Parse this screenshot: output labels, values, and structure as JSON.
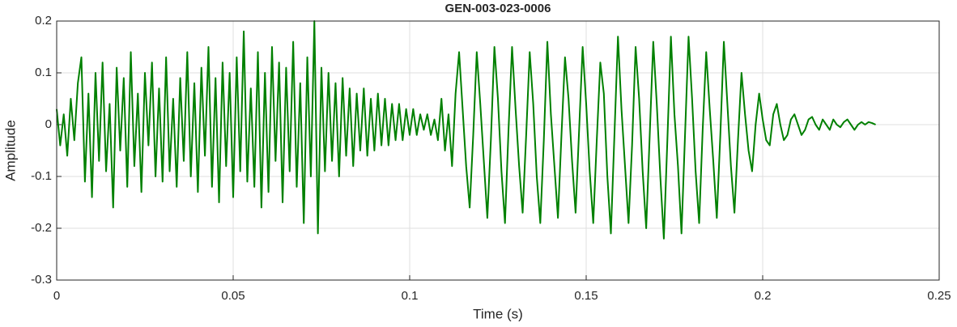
{
  "chart_data": {
    "type": "line",
    "title": "GEN-003-023-0006",
    "xlabel": "Time (s)",
    "ylabel": "Amplitude",
    "color": "#008000",
    "grid": true,
    "xlim": [
      0,
      0.25
    ],
    "ylim": [
      -0.3,
      0.2
    ],
    "xticks": [
      0,
      0.05,
      0.1,
      0.15,
      0.2,
      0.25
    ],
    "yticks": [
      -0.3,
      -0.2,
      -0.1,
      0,
      0.1,
      0.2
    ],
    "x": [
      0,
      0.001,
      0.002,
      0.003,
      0.004,
      0.005,
      0.006,
      0.007,
      0.008,
      0.009,
      0.01,
      0.011,
      0.012,
      0.013,
      0.014,
      0.015,
      0.016,
      0.017,
      0.018,
      0.019,
      0.02,
      0.021,
      0.022,
      0.023,
      0.024,
      0.025,
      0.026,
      0.027,
      0.028,
      0.029,
      0.03,
      0.031,
      0.032,
      0.033,
      0.034,
      0.035,
      0.036,
      0.037,
      0.038,
      0.039,
      0.04,
      0.041,
      0.042,
      0.043,
      0.044,
      0.045,
      0.046,
      0.047,
      0.048,
      0.049,
      0.05,
      0.051,
      0.052,
      0.053,
      0.054,
      0.055,
      0.056,
      0.057,
      0.058,
      0.059,
      0.06,
      0.061,
      0.062,
      0.063,
      0.064,
      0.065,
      0.066,
      0.067,
      0.068,
      0.069,
      0.07,
      0.071,
      0.072,
      0.073,
      0.074,
      0.075,
      0.076,
      0.077,
      0.078,
      0.079,
      0.08,
      0.081,
      0.082,
      0.083,
      0.084,
      0.085,
      0.086,
      0.087,
      0.088,
      0.089,
      0.09,
      0.091,
      0.092,
      0.093,
      0.094,
      0.095,
      0.096,
      0.097,
      0.098,
      0.099,
      0.1,
      0.101,
      0.102,
      0.103,
      0.104,
      0.105,
      0.106,
      0.107,
      0.108,
      0.109,
      0.11,
      0.111,
      0.112,
      0.113,
      0.114,
      0.115,
      0.116,
      0.117,
      0.118,
      0.119,
      0.12,
      0.121,
      0.122,
      0.123,
      0.124,
      0.125,
      0.126,
      0.127,
      0.128,
      0.129,
      0.13,
      0.131,
      0.132,
      0.133,
      0.134,
      0.135,
      0.136,
      0.137,
      0.138,
      0.139,
      0.14,
      0.141,
      0.142,
      0.143,
      0.144,
      0.145,
      0.146,
      0.147,
      0.148,
      0.149,
      0.15,
      0.151,
      0.152,
      0.153,
      0.154,
      0.155,
      0.156,
      0.157,
      0.158,
      0.159,
      0.16,
      0.161,
      0.162,
      0.163,
      0.164,
      0.165,
      0.166,
      0.167,
      0.168,
      0.169,
      0.17,
      0.171,
      0.172,
      0.173,
      0.174,
      0.175,
      0.176,
      0.177,
      0.178,
      0.179,
      0.18,
      0.181,
      0.182,
      0.183,
      0.184,
      0.185,
      0.186,
      0.187,
      0.188,
      0.189,
      0.19,
      0.191,
      0.192,
      0.193,
      0.194,
      0.195,
      0.196,
      0.197,
      0.198,
      0.199,
      0.2,
      0.201,
      0.202,
      0.203,
      0.204,
      0.205,
      0.206,
      0.207,
      0.208,
      0.209,
      0.21,
      0.211,
      0.212,
      0.213,
      0.214,
      0.215,
      0.216,
      0.217,
      0.218,
      0.219,
      0.22,
      0.221,
      0.222,
      0.223,
      0.224,
      0.225,
      0.226,
      0.227,
      0.228,
      0.229,
      0.23,
      0.231,
      0.232
    ],
    "values": [
      0.03,
      -0.04,
      0.02,
      -0.06,
      0.05,
      -0.03,
      0.08,
      0.13,
      -0.11,
      0.06,
      -0.14,
      0.1,
      -0.07,
      0.12,
      -0.09,
      0.04,
      -0.16,
      0.11,
      -0.05,
      0.09,
      -0.12,
      0.14,
      -0.08,
      0.06,
      -0.13,
      0.1,
      -0.04,
      0.12,
      -0.1,
      0.07,
      -0.11,
      0.13,
      -0.09,
      0.05,
      -0.12,
      0.09,
      -0.07,
      0.14,
      -0.1,
      0.08,
      -0.13,
      0.11,
      -0.06,
      0.15,
      -0.12,
      0.09,
      -0.15,
      0.12,
      -0.08,
      0.1,
      -0.14,
      0.13,
      -0.09,
      0.18,
      -0.11,
      0.07,
      -0.12,
      0.14,
      -0.16,
      0.1,
      -0.13,
      0.15,
      -0.07,
      0.12,
      -0.15,
      0.11,
      -0.09,
      0.16,
      -0.12,
      0.08,
      -0.19,
      0.13,
      -0.1,
      0.2,
      -0.21,
      0.11,
      -0.09,
      0.1,
      -0.07,
      0.08,
      -0.1,
      0.09,
      -0.06,
      0.07,
      -0.08,
      0.06,
      -0.05,
      0.07,
      -0.06,
      0.05,
      -0.05,
      0.06,
      -0.04,
      0.05,
      -0.04,
      0.04,
      -0.03,
      0.04,
      -0.03,
      0.03,
      -0.02,
      0.03,
      -0.02,
      0.02,
      -0.01,
      0.02,
      -0.02,
      0.01,
      -0.03,
      0.05,
      -0.05,
      0.02,
      -0.08,
      0.06,
      0.14,
      0.03,
      -0.08,
      -0.16,
      -0.02,
      0.14,
      0.04,
      -0.07,
      -0.18,
      -0.03,
      0.15,
      0.05,
      -0.09,
      -0.19,
      -0.01,
      0.15,
      0.03,
      -0.08,
      -0.17,
      -0.02,
      0.14,
      0.04,
      -0.1,
      -0.19,
      -0.03,
      0.16,
      0.02,
      -0.08,
      -0.18,
      -0.02,
      0.13,
      0.05,
      -0.07,
      -0.17,
      -0.01,
      0.15,
      0.04,
      -0.09,
      -0.19,
      -0.03,
      0.12,
      0.06,
      -0.1,
      -0.21,
      -0.02,
      0.17,
      0.03,
      -0.08,
      -0.19,
      -0.04,
      0.15,
      0.05,
      -0.09,
      -0.2,
      -0.02,
      0.16,
      0.04,
      -0.1,
      -0.22,
      -0.03,
      0.17,
      0.02,
      -0.08,
      -0.21,
      -0.02,
      0.17,
      0.05,
      -0.09,
      -0.19,
      -0.01,
      0.14,
      0.03,
      -0.07,
      -0.18,
      -0.02,
      0.16,
      0.04,
      -0.08,
      -0.17,
      -0.03,
      0.1,
      0.02,
      -0.05,
      -0.09,
      0.0,
      0.06,
      0.01,
      -0.03,
      -0.04,
      0.02,
      0.04,
      0.0,
      -0.03,
      -0.02,
      0.01,
      0.02,
      0.0,
      -0.02,
      -0.01,
      0.01,
      0.015,
      0.0,
      -0.01,
      0.01,
      0.0,
      -0.01,
      0.01,
      0.0,
      -0.005,
      0.005,
      0.01,
      0.0,
      -0.01,
      0.0,
      0.005,
      0.0,
      0.005,
      0.003,
      0.0
    ]
  }
}
